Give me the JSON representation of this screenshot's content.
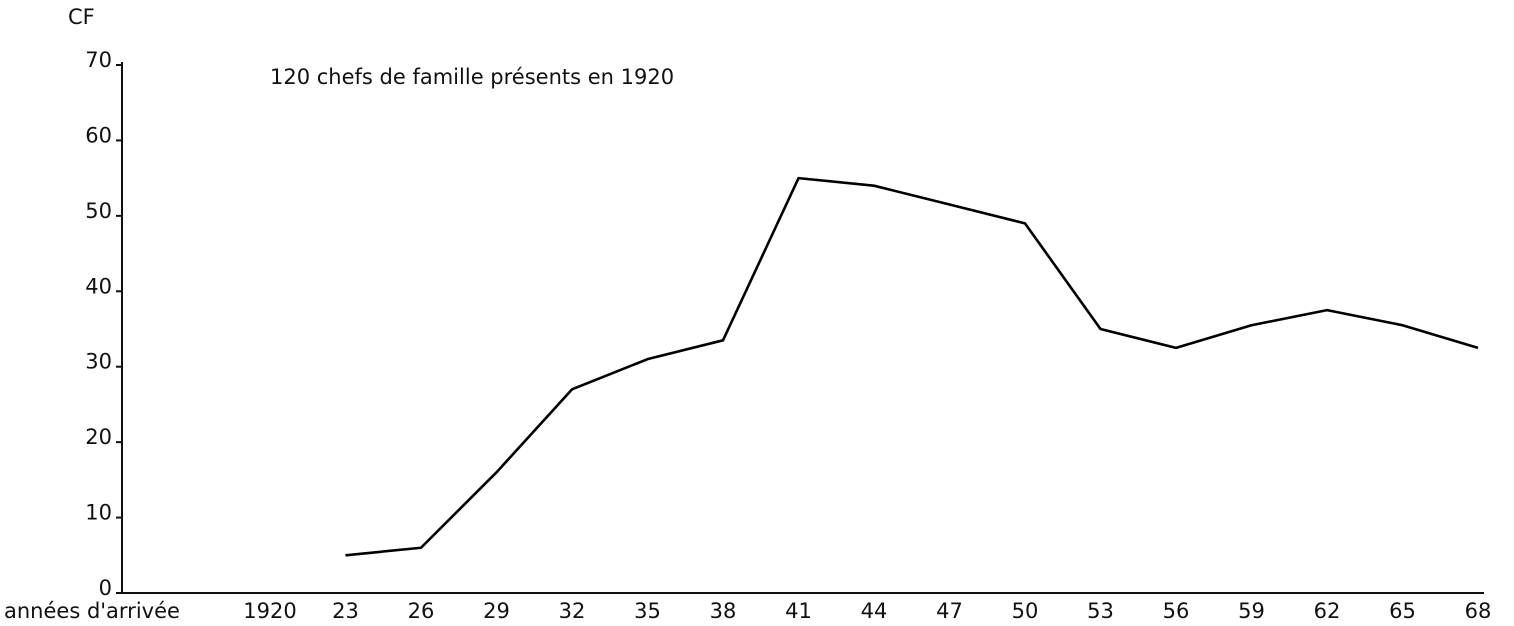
{
  "chart_data": {
    "type": "line",
    "title": "120 chefs de famille présents en 1920",
    "y_label": "CF",
    "x_label": "années d'arrivée",
    "categories": [
      "1920",
      "23",
      "26",
      "29",
      "32",
      "35",
      "38",
      "41",
      "44",
      "47",
      "50",
      "53",
      "56",
      "59",
      "62",
      "65",
      "68"
    ],
    "values": [
      null,
      5,
      6,
      16,
      27,
      31,
      33.5,
      55,
      54,
      51.5,
      49,
      35,
      32.5,
      35.5,
      37.5,
      35.5,
      32.5
    ],
    "color": "#000000",
    "ylim": [
      0,
      70
    ],
    "yticks": [
      0,
      10,
      20,
      30,
      40,
      50,
      60,
      70
    ],
    "grid": false
  }
}
